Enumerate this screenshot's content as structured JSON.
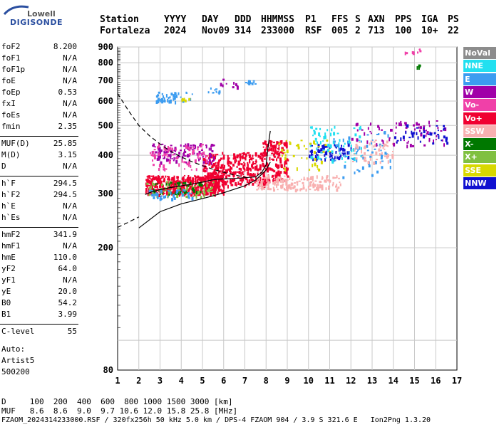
{
  "logo": {
    "line1": "Lowell",
    "line2": "DIGISONDE"
  },
  "header": {
    "labels": [
      "Station",
      "YYYY",
      "DAY",
      "DDD",
      "HHMMSS",
      "P1",
      "FFS",
      "S",
      "AXN",
      "PPS",
      "IGA",
      "PS"
    ],
    "values": [
      "Fortaleza",
      "2024",
      "Nov09",
      "314",
      "233000",
      "RSF",
      "005",
      "2",
      "713",
      "100",
      "10+",
      "22"
    ]
  },
  "params": [
    {
      "name": "foF2",
      "value": "8.200"
    },
    {
      "name": "foF1",
      "value": "N/A"
    },
    {
      "name": "foF1p",
      "value": "N/A"
    },
    {
      "name": "foE",
      "value": "N/A"
    },
    {
      "name": "foEp",
      "value": "0.53"
    },
    {
      "name": "fxI",
      "value": "N/A"
    },
    {
      "name": "foEs",
      "value": "N/A"
    },
    {
      "name": "fmin",
      "value": "2.35"
    },
    {
      "name": "MUF(D)",
      "value": "25.85"
    },
    {
      "name": "M(D)",
      "value": "3.15"
    },
    {
      "name": "D",
      "value": "N/A"
    },
    {
      "name": "h`F",
      "value": "294.5"
    },
    {
      "name": "h`F2",
      "value": "294.5"
    },
    {
      "name": "h`E",
      "value": "N/A"
    },
    {
      "name": "h`Es",
      "value": "N/A"
    },
    {
      "name": "hmF2",
      "value": "341.9"
    },
    {
      "name": "hmF1",
      "value": "N/A"
    },
    {
      "name": "hmE",
      "value": "110.0"
    },
    {
      "name": "yF2",
      "value": "64.0"
    },
    {
      "name": "yF1",
      "value": "N/A"
    },
    {
      "name": "yE",
      "value": "20.0"
    },
    {
      "name": "B0",
      "value": "54.2"
    },
    {
      "name": "B1",
      "value": "3.99"
    },
    {
      "name": "C-level",
      "value": "55"
    }
  ],
  "auto": [
    "Auto:",
    "Artist5",
    "500200"
  ],
  "footer": {
    "distance_line": "D     100  200  400  600  800 1000 1500 3000 [km]",
    "muf_line": "MUF   8.6  8.6  9.0  9.7 10.6 12.0 15.8 25.8 [MHz]",
    "file_line": "FZAOM_2024314233000.RSF / 320fx256h 50 kHz 5.0 km / DPS-4 FZAOM 904 / 3.9 S 321.6 E   Ion2Png 1.3.20"
  },
  "legend": [
    {
      "label": "NoVal",
      "color": "#8c8c8c"
    },
    {
      "label": "NNE",
      "color": "#22e0f0"
    },
    {
      "label": "E",
      "color": "#3c9cf0"
    },
    {
      "label": "W",
      "color": "#a000a8"
    },
    {
      "label": "Vo-",
      "color": "#f040a8"
    },
    {
      "label": "Vo+",
      "color": "#f00030"
    },
    {
      "label": "SSW",
      "color": "#f8b0b0"
    },
    {
      "label": "X-",
      "color": "#007800"
    },
    {
      "label": "X+",
      "color": "#80c040"
    },
    {
      "label": "SSE",
      "color": "#d8d800"
    },
    {
      "label": "NNW",
      "color": "#1010d0"
    }
  ],
  "chart_data": {
    "type": "scatter",
    "xlim": [
      1,
      17
    ],
    "ylim": [
      80,
      900
    ],
    "x_ticks": [
      "1",
      "2",
      "3",
      "4",
      "5",
      "6",
      "7",
      "8",
      "9",
      "10",
      "11",
      "12",
      "13",
      "14",
      "15",
      "16",
      "17"
    ],
    "y_ticks": [
      "80",
      "200",
      "300",
      "400",
      "500",
      "600",
      "700",
      "800",
      "900"
    ],
    "y_scale": "log",
    "grid": true,
    "xlabel": "",
    "ylabel": "",
    "profile_curve": {
      "x": [
        2.0,
        3.0,
        4.0,
        5.0,
        5.5,
        6.0,
        6.5,
        7.0,
        7.5,
        8.0,
        8.2
      ],
      "y": [
        232,
        262,
        278,
        289,
        295,
        302,
        310,
        318,
        332,
        358,
        380
      ]
    },
    "trace_curve": {
      "x": [
        2.3,
        2.6,
        3.0,
        3.5,
        4.0,
        4.5,
        5.0,
        5.5,
        6.0,
        6.5,
        7.0,
        7.5,
        7.8,
        8.0,
        8.1,
        8.2
      ],
      "y": [
        298,
        304,
        309,
        314,
        318,
        322,
        327,
        333,
        335,
        336,
        338,
        340,
        352,
        372,
        430,
        480
      ]
    },
    "dashed_curve": {
      "x": [
        1.0,
        1.5,
        2.0,
        2.5,
        3.0,
        3.5,
        4.0,
        4.5,
        5.0,
        5.5,
        6.0,
        6.5,
        7.0
      ],
      "y": [
        635,
        560,
        500,
        463,
        435,
        412,
        395,
        381,
        370,
        360,
        352,
        345,
        340
      ]
    },
    "lower_dashed_curve": {
      "x": [
        1.0,
        1.5,
        2.0
      ],
      "y": [
        233,
        242,
        252
      ]
    },
    "clusters": [
      {
        "cls": "Vo+",
        "x": [
          2.3,
          6.0
        ],
        "y": [
          300,
          345
        ],
        "n": 500
      },
      {
        "cls": "Vo+",
        "x": [
          5.0,
          8.0
        ],
        "y": [
          320,
          410
        ],
        "n": 350
      },
      {
        "cls": "Vo+",
        "x": [
          7.8,
          9.0
        ],
        "y": [
          330,
          450
        ],
        "n": 150
      },
      {
        "cls": "W",
        "x": [
          2.6,
          5.5
        ],
        "y": [
          380,
          440
        ],
        "n": 120
      },
      {
        "cls": "Vo-",
        "x": [
          2.5,
          5.2
        ],
        "y": [
          360,
          440
        ],
        "n": 80
      },
      {
        "cls": "X+",
        "x": [
          2.3,
          5.5
        ],
        "y": [
          295,
          330
        ],
        "n": 70
      },
      {
        "cls": "X-",
        "x": [
          2.5,
          5.0
        ],
        "y": [
          300,
          330
        ],
        "n": 40
      },
      {
        "cls": "E",
        "x": [
          2.4,
          4.5
        ],
        "y": [
          290,
          310
        ],
        "n": 40
      },
      {
        "cls": "SSW",
        "x": [
          7.5,
          11.5
        ],
        "y": [
          310,
          345
        ],
        "n": 160
      },
      {
        "cls": "NNW",
        "x": [
          10.0,
          12.0
        ],
        "y": [
          390,
          440
        ],
        "n": 80
      },
      {
        "cls": "NNE",
        "x": [
          10.0,
          12.5
        ],
        "y": [
          380,
          500
        ],
        "n": 70
      },
      {
        "cls": "E",
        "x": [
          11.0,
          14.0
        ],
        "y": [
          340,
          480
        ],
        "n": 60
      },
      {
        "cls": "SSW",
        "x": [
          12.0,
          14.0
        ],
        "y": [
          380,
          450
        ],
        "n": 50
      },
      {
        "cls": "W",
        "x": [
          12.0,
          16.5
        ],
        "y": [
          430,
          520
        ],
        "n": 70
      },
      {
        "cls": "NNW",
        "x": [
          14.0,
          16.5
        ],
        "y": [
          440,
          510
        ],
        "n": 40
      },
      {
        "cls": "SSE",
        "x": [
          8.5,
          11.0
        ],
        "y": [
          360,
          450
        ],
        "n": 40
      },
      {
        "cls": "E",
        "x": [
          2.8,
          4.5
        ],
        "y": [
          600,
          645
        ],
        "n": 40
      },
      {
        "cls": "E",
        "x": [
          5.2,
          5.8
        ],
        "y": [
          640,
          665
        ],
        "n": 12
      },
      {
        "cls": "E",
        "x": [
          7.0,
          7.5
        ],
        "y": [
          685,
          705
        ],
        "n": 12
      },
      {
        "cls": "W",
        "x": [
          5.8,
          6.8
        ],
        "y": [
          670,
          710
        ],
        "n": 10
      },
      {
        "cls": "Vo-",
        "x": [
          14.5,
          15.3
        ],
        "y": [
          860,
          890
        ],
        "n": 8
      },
      {
        "cls": "X-",
        "x": [
          15.0,
          15.3
        ],
        "y": [
          775,
          790
        ],
        "n": 5
      },
      {
        "cls": "SSE",
        "x": [
          3.9,
          4.5
        ],
        "y": [
          605,
          615
        ],
        "n": 8
      }
    ]
  }
}
